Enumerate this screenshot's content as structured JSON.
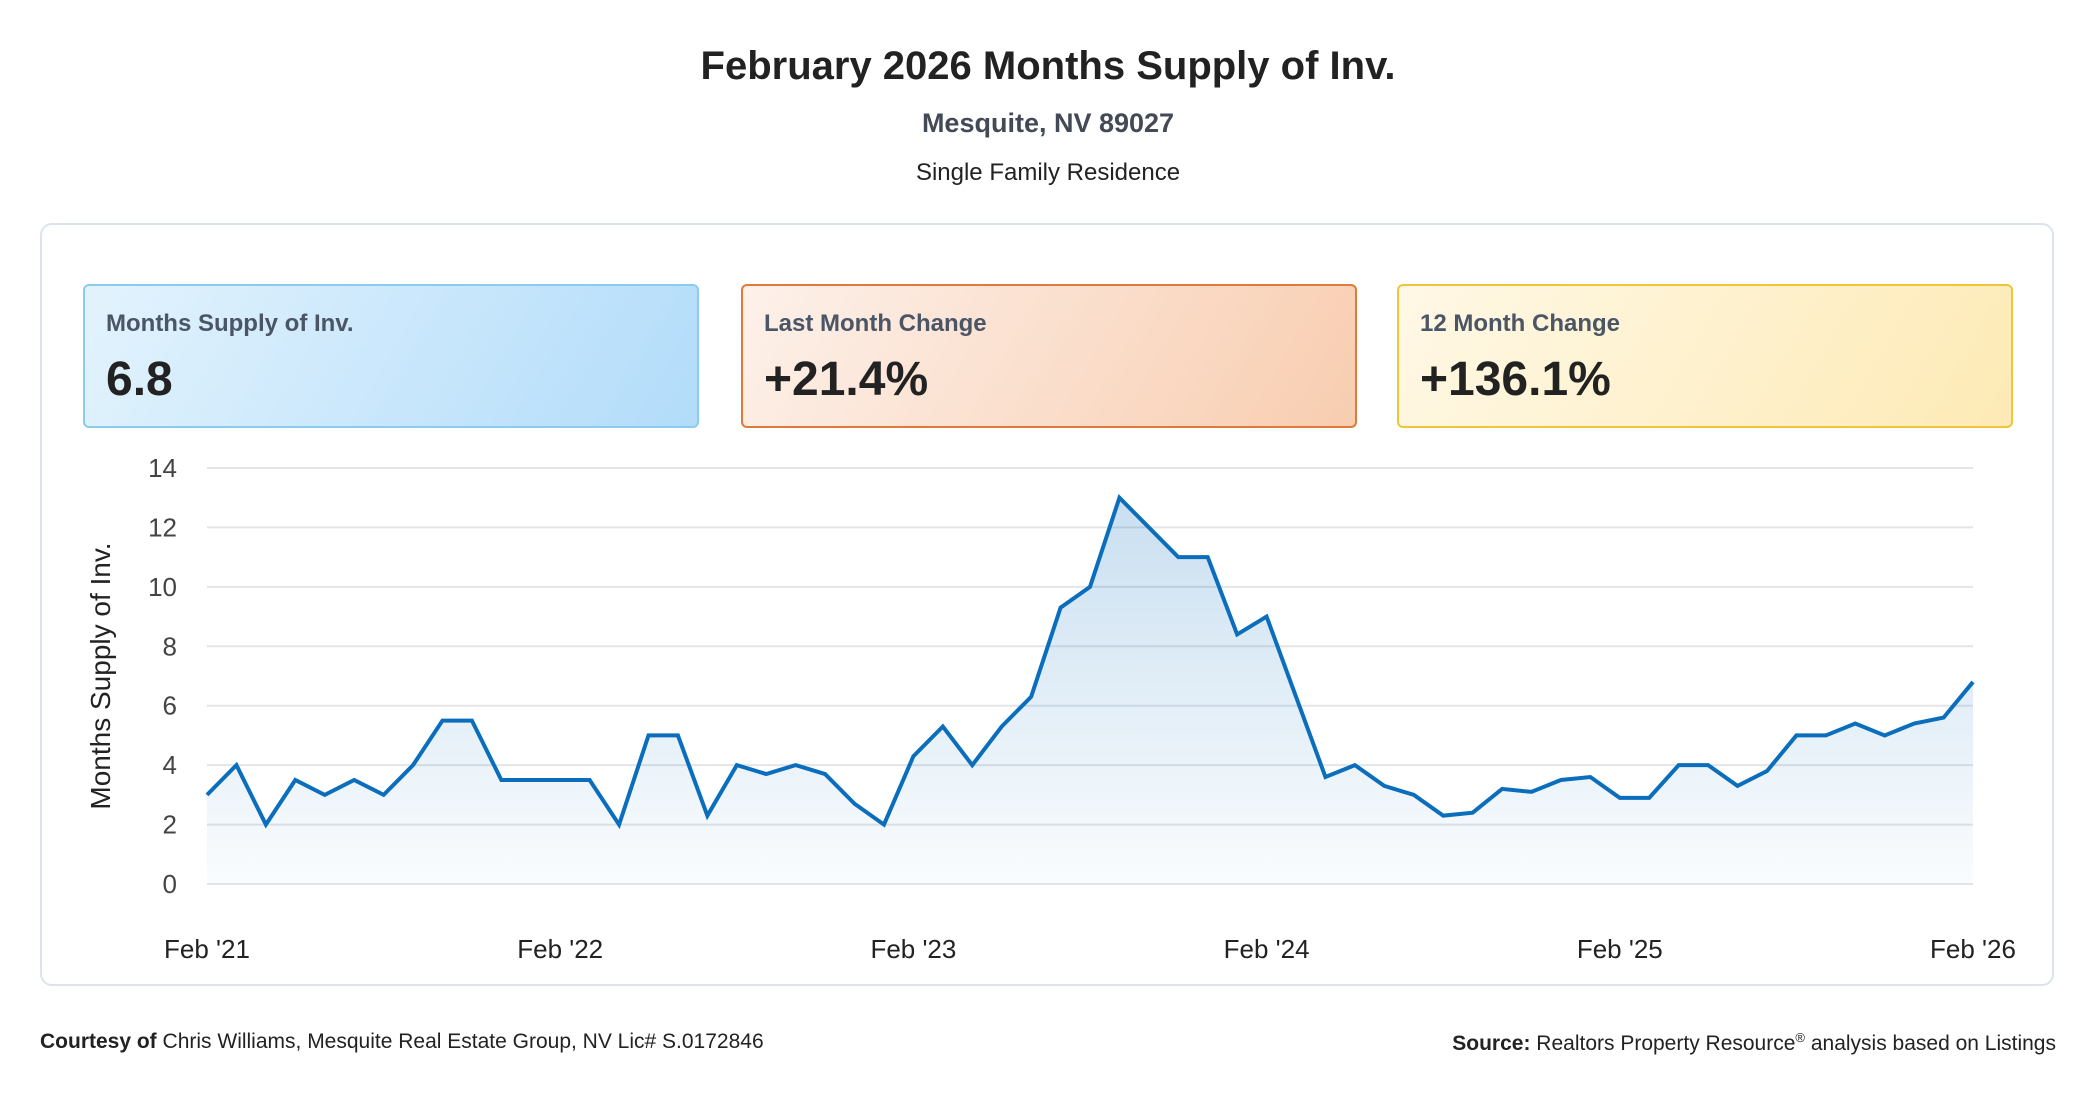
{
  "header": {
    "title": "February 2026 Months Supply of Inv.",
    "location": "Mesquite, NV 89027",
    "property_type": "Single Family Residence"
  },
  "stats": [
    {
      "label": "Months Supply of Inv.",
      "value": "6.8"
    },
    {
      "label": "Last Month Change",
      "value": "+21.4%"
    },
    {
      "label": "12 Month Change",
      "value": "+136.1%"
    }
  ],
  "chart_data": {
    "type": "area",
    "ylabel": "Months Supply of Inv.",
    "ylim": [
      0,
      14
    ],
    "yticks": [
      "0",
      "2",
      "4",
      "6",
      "8",
      "10",
      "12",
      "14"
    ],
    "xtick_labels": [
      "Feb '21",
      "Feb '22",
      "Feb '23",
      "Feb '24",
      "Feb '25",
      "Feb '26"
    ],
    "x_start": "Feb 2021",
    "x_end": "Feb 2026",
    "frequency": "monthly",
    "values": [
      3.0,
      4.0,
      2.0,
      3.5,
      3.0,
      3.5,
      3.0,
      4.0,
      5.5,
      5.5,
      3.5,
      3.5,
      3.5,
      3.5,
      2.0,
      5.0,
      5.0,
      2.3,
      4.0,
      3.7,
      4.0,
      3.7,
      2.7,
      2.0,
      4.3,
      5.3,
      4.0,
      5.3,
      6.3,
      9.3,
      10.0,
      13.0,
      12.0,
      11.0,
      11.0,
      8.4,
      9.0,
      6.3,
      3.6,
      4.0,
      3.3,
      3.0,
      2.3,
      2.4,
      3.2,
      3.1,
      3.5,
      3.6,
      2.9,
      2.9,
      4.0,
      4.0,
      3.3,
      3.8,
      5.0,
      5.0,
      5.4,
      5.0,
      5.4,
      5.6,
      6.8
    ],
    "line_color": "#0a6ebd",
    "grid": true
  },
  "footer": {
    "courtesy_label": "Courtesy of",
    "courtesy_text": "Chris Williams, Mesquite Real Estate Group, NV Lic# S.0172846",
    "source_label": "Source:",
    "source_text": "Realtors Property Resource",
    "source_sup": "®",
    "source_tail": " analysis based on Listings"
  }
}
